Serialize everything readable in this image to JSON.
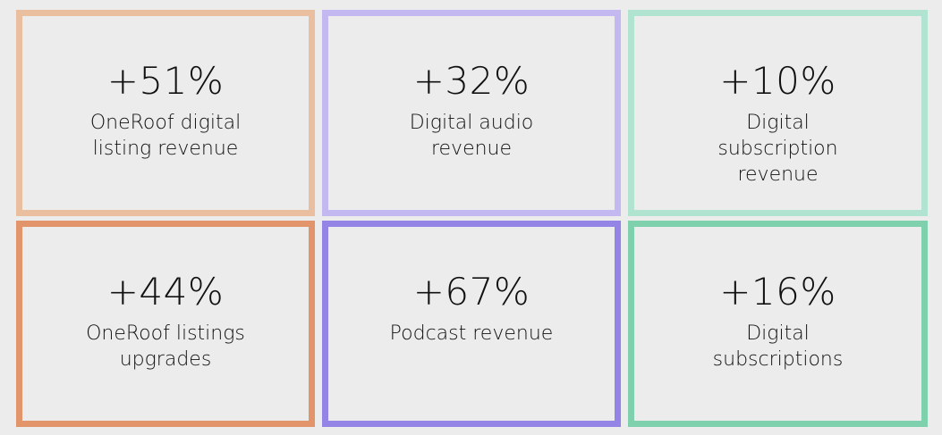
{
  "stats": [
    {
      "value": "+51%",
      "label": "OneRoof digital listing revenue",
      "border_color": "#eabfa0"
    },
    {
      "value": "+32%",
      "label": "Digital audio revenue",
      "border_color": "#c3b8f0"
    },
    {
      "value": "+10%",
      "label": "Digital subscription revenue",
      "border_color": "#b0e3d0"
    },
    {
      "value": "+44%",
      "label": "OneRoof listings upgrades",
      "border_color": "#e2946a"
    },
    {
      "value": "+67%",
      "label": "Podcast revenue",
      "border_color": "#9484e6"
    },
    {
      "value": "+16%",
      "label": "Digital subscriptions",
      "border_color": "#7fd1ad"
    }
  ]
}
